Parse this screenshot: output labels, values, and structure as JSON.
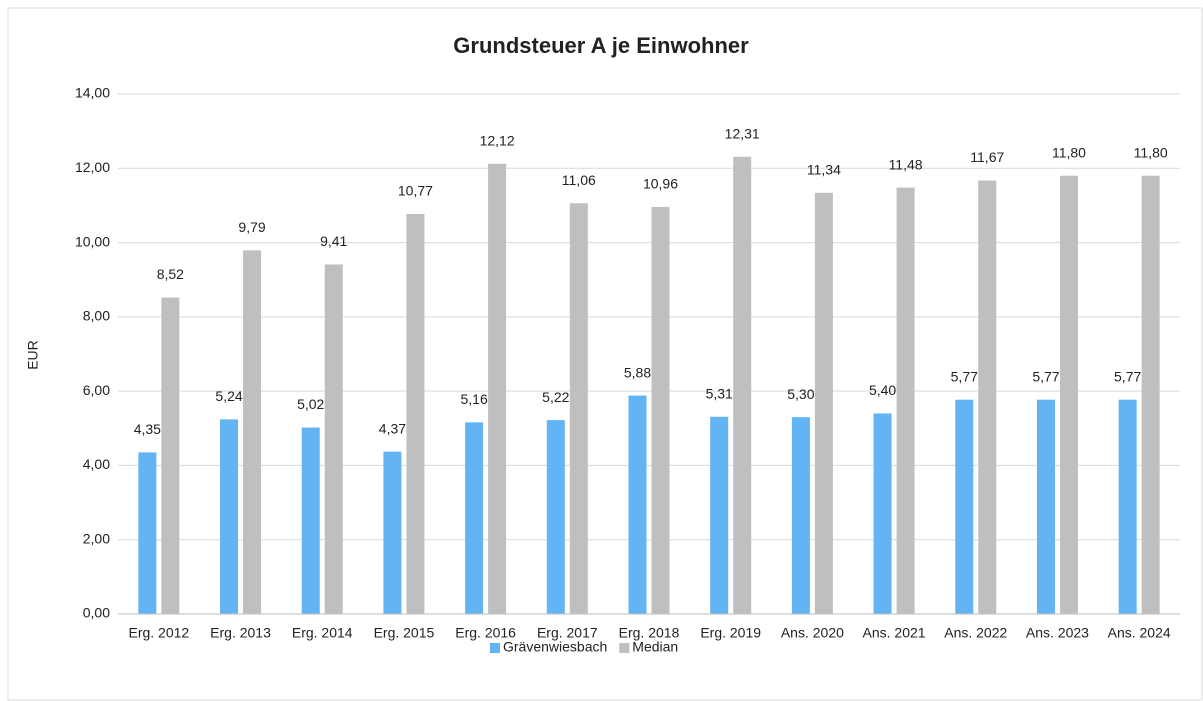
{
  "chart_data": {
    "type": "bar",
    "title": "Grundsteuer A je Einwohner",
    "y_label": "EUR",
    "categories": [
      "Erg. 2012",
      "Erg. 2013",
      "Erg. 2014",
      "Erg. 2015",
      "Erg. 2016",
      "Erg. 2017",
      "Erg. 2018",
      "Erg. 2019",
      "Ans. 2020",
      "Ans. 2021",
      "Ans. 2022",
      "Ans. 2023",
      "Ans. 2024"
    ],
    "series": [
      {
        "name": "Grävenwiesbach",
        "color": "#63b4f3",
        "values": [
          4.35,
          5.24,
          5.02,
          4.37,
          5.16,
          5.22,
          5.88,
          5.31,
          5.3,
          5.4,
          5.77,
          5.77,
          5.77
        ],
        "value_labels": [
          "4,35",
          "5,24",
          "5,02",
          "4,37",
          "5,16",
          "5,22",
          "5,88",
          "5,31",
          "5,30",
          "5,40",
          "5,77",
          "5,77",
          "5,77"
        ]
      },
      {
        "name": "Median",
        "color": "#bfbfbf",
        "values": [
          8.52,
          9.79,
          9.41,
          10.77,
          12.12,
          11.06,
          10.96,
          12.31,
          11.34,
          11.48,
          11.67,
          11.8,
          11.8
        ],
        "value_labels": [
          "8,52",
          "9,79",
          "9,41",
          "10,77",
          "12,12",
          "11,06",
          "10,96",
          "12,31",
          "11,34",
          "11,48",
          "11,67",
          "11,80",
          "11,80"
        ]
      }
    ],
    "ylim": [
      0,
      14
    ],
    "yticks": [
      {
        "value": 0,
        "label": "0,00"
      },
      {
        "value": 2,
        "label": "2,00"
      },
      {
        "value": 4,
        "label": "4,00"
      },
      {
        "value": 6,
        "label": "6,00"
      },
      {
        "value": 8,
        "label": "8,00"
      },
      {
        "value": 10,
        "label": "10,00"
      },
      {
        "value": 12,
        "label": "12,00"
      },
      {
        "value": 14,
        "label": "14,00"
      }
    ],
    "grid": true,
    "legend": "bottom"
  }
}
